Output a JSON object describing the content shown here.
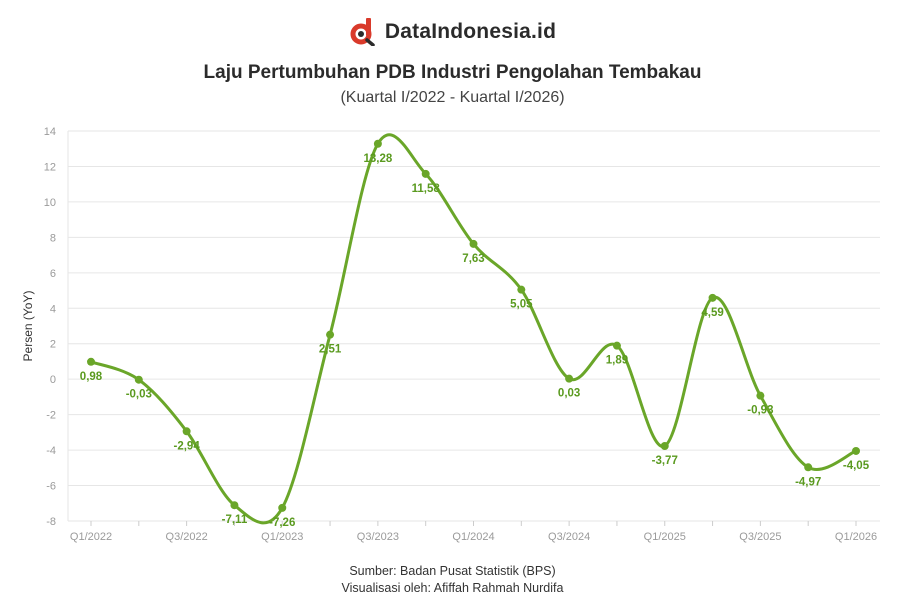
{
  "brand": {
    "name": "DataIndonesia.id",
    "logo_colors": {
      "primary": "#d93a2b",
      "secondary": "#2b2b2b"
    }
  },
  "title": "Laju Pertumbuhan PDB Industri Pengolahan Tembakau",
  "subtitle": "(Kuartal I/2022 - Kuartal I/2026)",
  "footer": {
    "source": "Sumber: Badan Pusat Statistik (BPS)",
    "credit": "Visualisasi oleh: Afiffah Rahmah Nurdifa"
  },
  "colors": {
    "line": "#6aa629",
    "label": "#5a9a1f",
    "grid": "#e6e6e6",
    "axis_text": "#9a9a9a"
  },
  "chart_data": {
    "type": "line",
    "title": "Laju Pertumbuhan PDB Industri Pengolahan Tembakau",
    "subtitle": "(Kuartal I/2022 - Kuartal I/2026)",
    "ylabel": "Persen (YoY)",
    "xlabel": "",
    "ylim": [
      -8,
      14
    ],
    "yticks": [
      -8,
      -6,
      -4,
      -2,
      0,
      2,
      4,
      6,
      8,
      10,
      12,
      14
    ],
    "grid": true,
    "legend": "none",
    "categories": [
      "Q1/2022",
      "Q2/2022",
      "Q3/2022",
      "Q4/2022",
      "Q1/2023",
      "Q2/2023",
      "Q3/2023",
      "Q4/2023",
      "Q1/2024",
      "Q2/2024",
      "Q3/2024",
      "Q4/2024",
      "Q1/2025",
      "Q2/2025",
      "Q3/2025",
      "Q4/2025",
      "Q1/2026"
    ],
    "tick_labels": [
      "Q1/2022",
      "",
      "Q3/2022",
      "",
      "Q1/2023",
      "",
      "Q3/2023",
      "",
      "Q1/2024",
      "",
      "Q3/2024",
      "",
      "Q1/2025",
      "",
      "Q3/2025",
      "",
      "Q1/2026"
    ],
    "values": [
      0.98,
      -0.03,
      -2.94,
      -7.11,
      -7.26,
      2.51,
      13.28,
      11.58,
      7.63,
      5.05,
      0.03,
      1.89,
      -3.77,
      4.59,
      -0.93,
      -4.97,
      -4.05
    ],
    "value_labels": [
      "0,98",
      "-0,03",
      "-2,94",
      "-7,11",
      "-7,26",
      "2,51",
      "13,28",
      "11,58",
      "7,63",
      "5,05",
      "0,03",
      "1,89",
      "-3,77",
      "4,59",
      "-0,93",
      "-4,97",
      "-4,05"
    ]
  }
}
